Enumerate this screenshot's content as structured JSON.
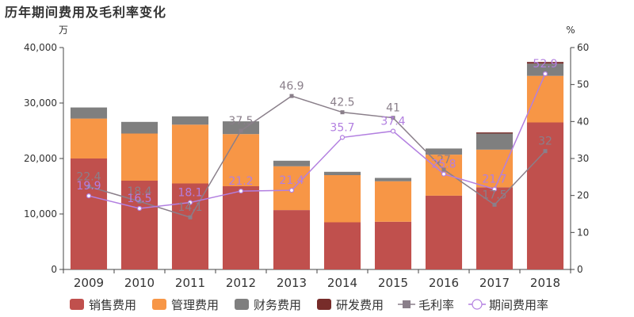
{
  "title": "历年期间费用及毛利率变化",
  "chart_data": {
    "type": "bar",
    "stacked": true,
    "categories": [
      "2009",
      "2010",
      "2011",
      "2012",
      "2013",
      "2014",
      "2015",
      "2016",
      "2017",
      "2018"
    ],
    "y_left": {
      "unit": "万",
      "ylim": [
        0,
        40000
      ],
      "ticks": [
        "0",
        "10,000",
        "20,000",
        "30,000",
        "40,000"
      ],
      "tick_values": [
        0,
        10000,
        20000,
        30000,
        40000
      ]
    },
    "y_right": {
      "unit": "%",
      "ylim": [
        0,
        60
      ],
      "ticks": [
        "0",
        "10",
        "20",
        "30",
        "40",
        "50",
        "60"
      ],
      "tick_values": [
        0,
        10,
        20,
        30,
        40,
        50,
        60
      ]
    },
    "series": [
      {
        "name": "销售费用",
        "type": "bar",
        "axis": "left",
        "color": "#c0504d",
        "values": [
          20000,
          16000,
          15500,
          15000,
          10700,
          8500,
          8600,
          13300,
          14800,
          26500
        ]
      },
      {
        "name": "管理费用",
        "type": "bar",
        "axis": "left",
        "color": "#f79646",
        "values": [
          7200,
          8500,
          10600,
          9400,
          7900,
          8500,
          7300,
          7400,
          6800,
          8400
        ]
      },
      {
        "name": "财务费用",
        "type": "bar",
        "axis": "left",
        "color": "#7f7f7f",
        "values": [
          2000,
          2100,
          1500,
          2300,
          1000,
          600,
          600,
          1100,
          2900,
          2200
        ]
      },
      {
        "name": "研发费用",
        "type": "bar",
        "axis": "left",
        "color": "#772c2a",
        "values": [
          0,
          0,
          0,
          0,
          0,
          0,
          0,
          0,
          200,
          300
        ]
      },
      {
        "name": "毛利率",
        "type": "line",
        "axis": "right",
        "color": "#8a7f8a",
        "values": [
          22.4,
          18.4,
          14.1,
          37.5,
          46.9,
          42.5,
          41,
          27,
          17.5,
          32
        ],
        "labels": [
          "22.4",
          "18.4",
          "14.1",
          "37.5",
          "46.9",
          "42.5",
          "41",
          "27",
          "17.5",
          "32"
        ]
      },
      {
        "name": "期间费用率",
        "type": "line",
        "axis": "right",
        "color": "#b27fe0",
        "values": [
          19.9,
          16.5,
          18.1,
          21.2,
          21.4,
          35.7,
          37.4,
          25.8,
          21.7,
          52.9
        ],
        "labels": [
          "19.9",
          "16.5",
          "18.1",
          "21.2",
          "21.4",
          "35.7",
          "37.4",
          "25.8",
          "21.7",
          "52.9"
        ]
      }
    ],
    "legend": {
      "placement": "bottom"
    },
    "grid": false
  }
}
